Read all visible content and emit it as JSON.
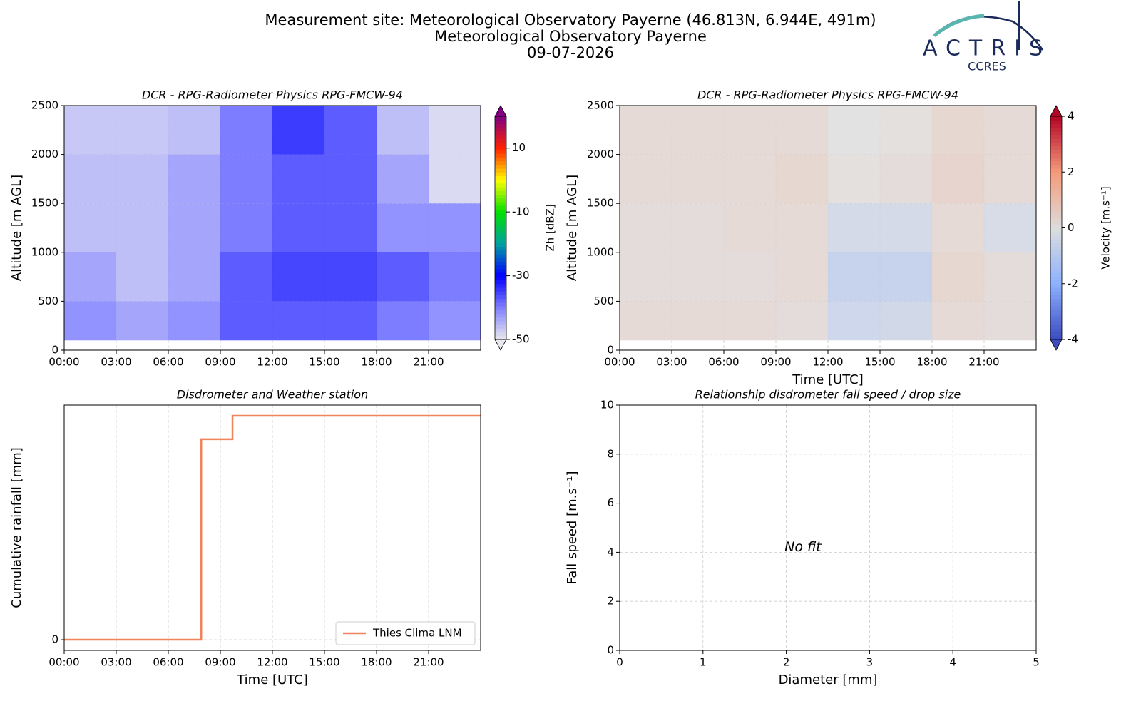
{
  "header": {
    "title_lines": [
      "Measurement site: Meteorological Observatory Payerne (46.813N, 6.944E, 491m)",
      "Meteorological Observatory Payerne",
      "09-07-2026"
    ],
    "logo": {
      "name": "ACTRIS",
      "subtitle": "CCRES"
    }
  },
  "chart_data": [
    {
      "type": "heatmap",
      "title": "DCR - RPG-Radiometer Physics RPG-FMCW-94",
      "ylabel": "Altitude [m AGL]",
      "xlim": [
        0,
        24
      ],
      "xticks": [
        {
          "value": 0,
          "label": "00:00"
        },
        {
          "value": 3,
          "label": "03:00"
        },
        {
          "value": 6,
          "label": "06:00"
        },
        {
          "value": 9,
          "label": "09:00"
        },
        {
          "value": 12,
          "label": "12:00"
        },
        {
          "value": 15,
          "label": "15:00"
        },
        {
          "value": 18,
          "label": "18:00"
        },
        {
          "value": 21,
          "label": "21:00"
        }
      ],
      "ylim": [
        0,
        2500
      ],
      "yticks": [
        0,
        500,
        1000,
        1500,
        2000,
        2500
      ],
      "grid": true,
      "xbins": [
        0,
        3,
        6,
        9,
        12,
        15,
        18,
        21,
        24
      ],
      "ybins": [
        100,
        500,
        1000,
        1500,
        2000,
        2500
      ],
      "values": [
        [
          -40,
          -42,
          -40,
          -35,
          -35,
          -35,
          -38,
          -40
        ],
        [
          -42,
          -45,
          -42,
          -35,
          -33,
          -33,
          -35,
          -38
        ],
        [
          -45,
          -45,
          -42,
          -38,
          -35,
          -35,
          -40,
          -40
        ],
        [
          -45,
          -45,
          -42,
          -38,
          -35,
          -35,
          -42,
          -48
        ],
        [
          -46,
          -46,
          -45,
          -38,
          -32,
          -35,
          -45,
          -48
        ]
      ],
      "colorbar": {
        "label": "Zh [dBZ]",
        "lim": [
          -50,
          20
        ],
        "ticks": [
          -50,
          -30,
          -10,
          10
        ],
        "colors": [
          "#e8e8ee",
          "#8080ff",
          "#0000ff",
          "#00a0a0",
          "#00e000",
          "#ffff00",
          "#ff2000",
          "#800080"
        ]
      }
    },
    {
      "type": "heatmap",
      "title": "DCR - RPG-Radiometer Physics RPG-FMCW-94",
      "ylabel": "Altitude [m AGL]",
      "xlabel": "Time [UTC]",
      "xlim": [
        0,
        24
      ],
      "xticks": [
        {
          "value": 0,
          "label": "00:00"
        },
        {
          "value": 3,
          "label": "03:00"
        },
        {
          "value": 6,
          "label": "06:00"
        },
        {
          "value": 9,
          "label": "09:00"
        },
        {
          "value": 12,
          "label": "12:00"
        },
        {
          "value": 15,
          "label": "15:00"
        },
        {
          "value": 18,
          "label": "18:00"
        },
        {
          "value": 21,
          "label": "21:00"
        }
      ],
      "ylim": [
        0,
        2500
      ],
      "yticks": [
        0,
        500,
        1000,
        1500,
        2000,
        2500
      ],
      "grid": true,
      "xbins": [
        0,
        3,
        6,
        9,
        12,
        15,
        18,
        21,
        24
      ],
      "ybins": [
        100,
        500,
        1000,
        1500,
        2000,
        2500
      ],
      "values": [
        [
          0.3,
          0.3,
          0.3,
          0.2,
          -0.6,
          -0.5,
          0.3,
          0.2
        ],
        [
          0.2,
          0.2,
          0.2,
          0.3,
          -0.8,
          -0.8,
          0.4,
          0.2
        ],
        [
          0.2,
          0.2,
          0.3,
          0.3,
          -0.4,
          -0.4,
          0.3,
          -0.3
        ],
        [
          0.3,
          0.3,
          0.3,
          0.4,
          0.1,
          0.2,
          0.5,
          0.3
        ],
        [
          0.3,
          0.3,
          0.3,
          0.3,
          0.0,
          0.1,
          0.4,
          0.3
        ]
      ],
      "colorbar": {
        "label": "Velocity [m.s⁻¹]",
        "lim": [
          -4,
          4
        ],
        "ticks": [
          -4,
          -2,
          0,
          2,
          4
        ],
        "colors": [
          "#3b4cc0",
          "#8db0fe",
          "#dddddd",
          "#f49a7b",
          "#b40426"
        ]
      }
    },
    {
      "type": "line",
      "title": "Disdrometer and Weather station",
      "xlabel": "Time [UTC]",
      "ylabel": "Cumulative rainfall [mm]",
      "xlim": [
        0,
        24
      ],
      "xticks": [
        {
          "value": 0,
          "label": "00:00"
        },
        {
          "value": 3,
          "label": "03:00"
        },
        {
          "value": 6,
          "label": "06:00"
        },
        {
          "value": 9,
          "label": "09:00"
        },
        {
          "value": 12,
          "label": "12:00"
        },
        {
          "value": 15,
          "label": "15:00"
        },
        {
          "value": 18,
          "label": "18:00"
        },
        {
          "value": 21,
          "label": "21:00"
        }
      ],
      "ylim": [
        -0.05,
        1.1
      ],
      "yticks": [
        0
      ],
      "grid": true,
      "legend": "lower right",
      "series": [
        {
          "name": "Thies Clima LNM",
          "color": "#f0845a",
          "x": [
            0,
            7.9,
            7.9,
            9.7,
            9.7,
            24
          ],
          "values": [
            0,
            0,
            0.94,
            0.94,
            1.05,
            1.05
          ]
        }
      ]
    },
    {
      "type": "scatter",
      "title": "Relationship disdrometer fall speed / drop size",
      "xlabel": "Diameter [mm]",
      "ylabel": "Fall speed [m.s⁻¹]",
      "xlim": [
        0,
        5
      ],
      "xticks": [
        0,
        1,
        2,
        3,
        4,
        5
      ],
      "ylim": [
        0,
        10
      ],
      "yticks": [
        0,
        2,
        4,
        6,
        8,
        10
      ],
      "grid": true,
      "annotation": "No fit"
    }
  ]
}
